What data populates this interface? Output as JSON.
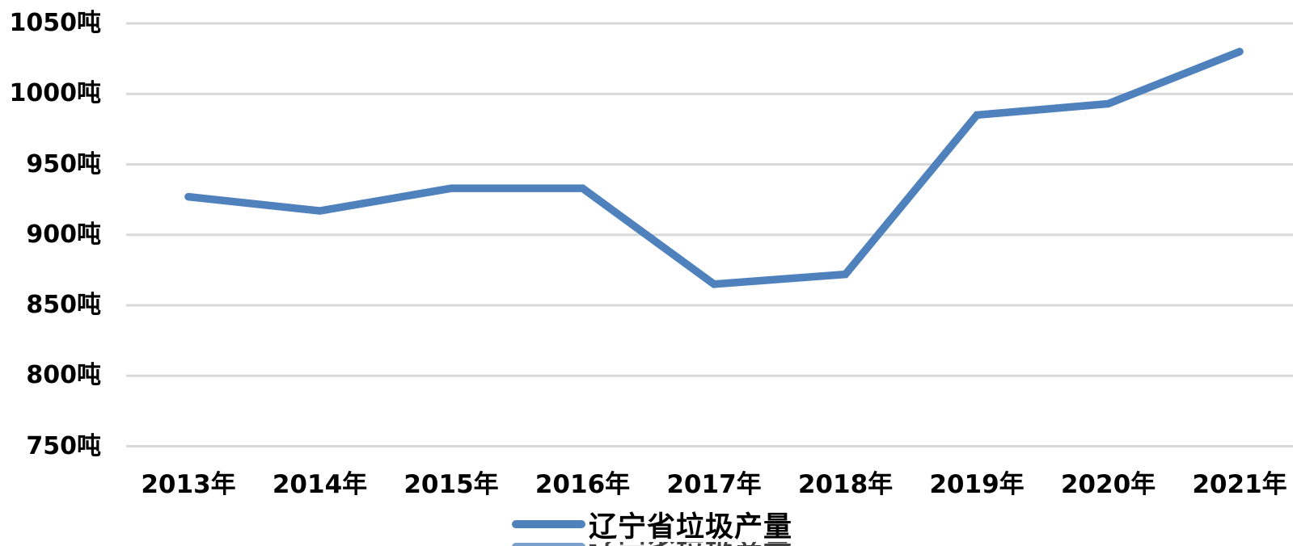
{
  "chart_data": {
    "type": "line",
    "title": "",
    "categories": [
      "2013年",
      "2014年",
      "2015年",
      "2016年",
      "2017年",
      "2018年",
      "2019年",
      "2020年",
      "2021年"
    ],
    "series": [
      {
        "name": "辽宁省垃圾产量",
        "values": [
          927,
          917,
          933,
          933,
          865,
          872,
          985,
          993,
          1030
        ]
      }
    ],
    "xlabel": "",
    "ylabel": "",
    "y_unit": "吨",
    "y_ticks": [
      {
        "label": "1050吨",
        "value": 1050
      },
      {
        "label": "1000吨",
        "value": 1000
      },
      {
        "label": "950吨",
        "value": 950
      },
      {
        "label": "900吨",
        "value": 900
      },
      {
        "label": "850吨",
        "value": 850
      },
      {
        "label": "800吨",
        "value": 800
      },
      {
        "label": "750吨",
        "value": 750
      }
    ],
    "ylim": [
      750,
      1050
    ],
    "grid": true,
    "legend_position": "bottom",
    "colors": {
      "line": "#4f81bd",
      "gridline": "#d9d9d9",
      "text": "#000000",
      "background": "#ffffff"
    }
  },
  "legend": {
    "label": "辽宁省垃圾产量"
  }
}
